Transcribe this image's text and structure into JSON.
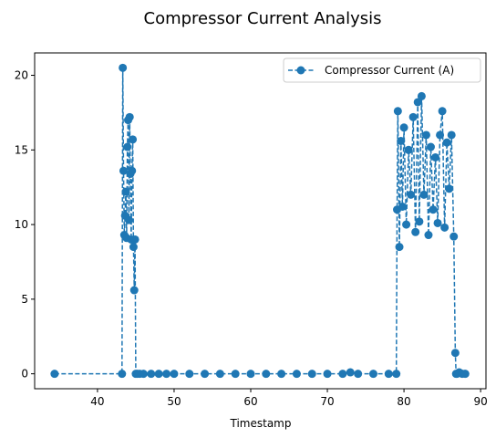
{
  "chart_data": {
    "type": "line",
    "title": "Compressor Current Analysis",
    "xlabel": "Timestamp",
    "ylabel": "",
    "xlim": [
      31.8,
      90.7
    ],
    "ylim": [
      -1.0,
      21.5
    ],
    "xticks": [
      40,
      50,
      60,
      70,
      80,
      90
    ],
    "yticks": [
      0,
      5,
      10,
      15,
      20
    ],
    "grid": false,
    "legend": "top-right",
    "colors": {
      "series": "#1f77b4"
    },
    "series": [
      {
        "name": "Compressor Current (A)",
        "marker": "circle",
        "linestyle": "dashed",
        "x": [
          34.4,
          43.2,
          43.3,
          43.4,
          43.5,
          43.6,
          43.7,
          43.8,
          43.9,
          44.0,
          44.1,
          44.2,
          44.3,
          44.4,
          44.5,
          44.6,
          44.7,
          44.8,
          44.9,
          45.0,
          45.2,
          45.5,
          46,
          47,
          48,
          49,
          50,
          52,
          54,
          56,
          58,
          60,
          62,
          64,
          66,
          68,
          70,
          72,
          73.0,
          74,
          76,
          78,
          79.0,
          79.1,
          79.2,
          79.4,
          79.6,
          79.8,
          80.0,
          80.3,
          80.6,
          80.9,
          81.2,
          81.5,
          81.8,
          82.0,
          82.3,
          82.6,
          82.9,
          83.2,
          83.5,
          83.8,
          84.1,
          84.4,
          84.7,
          85.0,
          85.3,
          85.6,
          85.9,
          86.2,
          86.5,
          86.7,
          86.8,
          86.9,
          87.2,
          87.6,
          88.0
        ],
        "y": [
          0.0,
          0.0,
          20.5,
          13.6,
          9.3,
          10.6,
          12.2,
          9.1,
          15.2,
          17.0,
          10.3,
          17.2,
          13.4,
          9.0,
          13.6,
          15.7,
          8.5,
          5.6,
          9.0,
          0.0,
          0.0,
          0.0,
          0.0,
          0.0,
          0.0,
          0.0,
          0.0,
          0.0,
          0.0,
          0.0,
          0.0,
          0.0,
          0.0,
          0.0,
          0.0,
          0.0,
          0.0,
          0.0,
          0.1,
          0.0,
          0.0,
          0.0,
          0.0,
          11.0,
          17.6,
          8.5,
          15.6,
          11.2,
          16.5,
          10.0,
          15.0,
          12.0,
          17.2,
          9.5,
          18.2,
          10.2,
          18.6,
          12.0,
          16.0,
          9.3,
          15.2,
          11.0,
          14.5,
          10.1,
          16.0,
          17.6,
          9.8,
          15.5,
          12.4,
          16.0,
          9.2,
          1.4,
          0.0,
          0.0,
          0.1,
          0.0,
          0.0
        ]
      }
    ]
  }
}
